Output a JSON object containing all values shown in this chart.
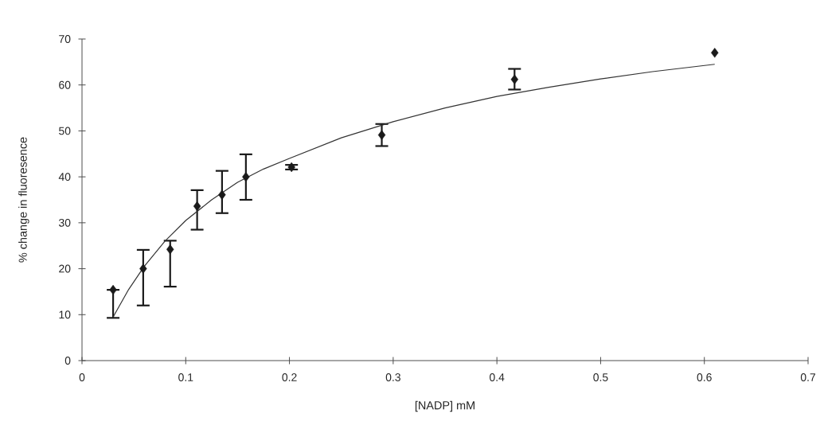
{
  "chart_data": {
    "type": "scatter",
    "xlabel": "[NADP] mM",
    "ylabel": "% change in fluoresence",
    "xlim": [
      0,
      0.7
    ],
    "ylim": [
      0,
      70
    ],
    "xticks": [
      0,
      0.1,
      0.2,
      0.3,
      0.4,
      0.5,
      0.6,
      0.7
    ],
    "yticks": [
      0,
      10,
      20,
      30,
      40,
      50,
      60,
      70
    ],
    "grid": false,
    "series": [
      {
        "color": "#1a1a1a",
        "marker": "diamond",
        "x": [
          0.03,
          0.059,
          0.085,
          0.111,
          0.135,
          0.158,
          0.202,
          0.289,
          0.417,
          0.61
        ],
        "values": [
          15.4,
          20.0,
          24.2,
          33.6,
          36.1,
          40.0,
          42.1,
          49.1,
          61.2,
          67
        ],
        "errors": [
          [
            9.3,
            15.4
          ],
          [
            12.0,
            24.1
          ],
          [
            16.1,
            26.1
          ],
          [
            28.5,
            37.1
          ],
          [
            32.1,
            41.3
          ],
          [
            35.0,
            44.9
          ],
          [
            41.6,
            42.6
          ],
          [
            46.7,
            51.5
          ],
          [
            59.0,
            63.5
          ],
          null
        ]
      },
      {
        "type": "line",
        "color": "#333333",
        "marker": "none",
        "line_style": "solid",
        "x": [
          0.03,
          0.045,
          0.06,
          0.08,
          0.1,
          0.125,
          0.15,
          0.175,
          0.2,
          0.25,
          0.3,
          0.35,
          0.4,
          0.45,
          0.5,
          0.55,
          0.61
        ],
        "values": [
          9.5,
          15.5,
          20.5,
          26,
          30.5,
          35,
          38.8,
          41.7,
          44,
          48.5,
          52,
          55,
          57.5,
          59.5,
          61.3,
          62.9,
          64.5
        ]
      }
    ]
  }
}
